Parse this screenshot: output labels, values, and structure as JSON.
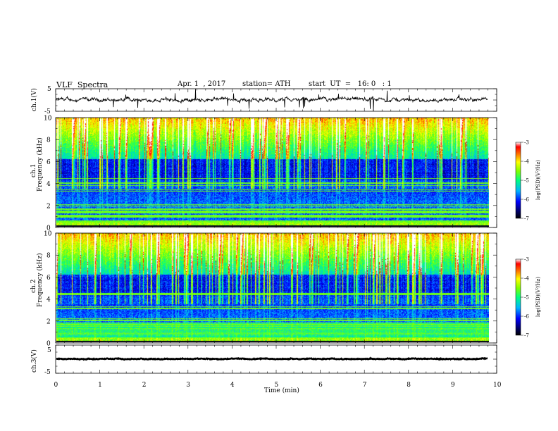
{
  "header": {
    "title": "VLF  Spectra",
    "date": "Apr. 1  , 2017",
    "station": "station= ATH",
    "start": "start  UT  =   16: 0   : 1"
  },
  "chart_data": [
    {
      "type": "line",
      "panel": "ch1-waveform",
      "ylabel": "ch.1(V)",
      "yticks": [
        "5",
        "-5"
      ],
      "ylim": [
        -5,
        5
      ],
      "xlim": [
        0,
        10
      ],
      "series_note": "",
      "signal": {
        "baseline": 0.1,
        "noise_amplitude": 0.8,
        "end_time": 9.8
      }
    },
    {
      "type": "heatmap",
      "panel": "ch1-spectrogram",
      "ylabel": "Frequency  (kHz)",
      "channel_label": "ch.1",
      "yticks": [
        "0",
        "2",
        "4",
        "6",
        "8",
        "10"
      ],
      "ylim": [
        0,
        10
      ],
      "xlim": [
        0,
        10
      ],
      "colorbar": {
        "label": "log(PSD)(V²/Hz)",
        "ticks": [
          "-3",
          "-4",
          "-5",
          "-6",
          "-7"
        ],
        "range": [
          -7,
          -3
        ]
      }
    },
    {
      "type": "heatmap",
      "panel": "ch2-spectrogram",
      "ylabel": "Frequency  (kHz)",
      "channel_label": "ch.2",
      "yticks": [
        "0",
        "2",
        "4",
        "6",
        "8",
        "10"
      ],
      "ylim": [
        0,
        10
      ],
      "xlim": [
        0,
        10
      ],
      "colorbar": {
        "label": "log(PSD)(V²/Hz)",
        "ticks": [
          "-3",
          "-4",
          "-5",
          "-6",
          "-7"
        ],
        "range": [
          -7,
          -3
        ]
      }
    },
    {
      "type": "line",
      "panel": "ch3-waveform",
      "ylabel": "ch.3(V)",
      "yticks": [
        "5",
        "-5"
      ],
      "ylim": [
        -5,
        5
      ],
      "xlim": [
        0,
        10
      ],
      "signal": {
        "baseline": 0.1,
        "noise_amplitude": 0.15,
        "end_time": 9.8
      }
    }
  ],
  "xaxis": {
    "label": "Time  (min)",
    "ticks": [
      "0",
      "1",
      "2",
      "3",
      "4",
      "5",
      "6",
      "7",
      "8",
      "9",
      "10"
    ]
  }
}
